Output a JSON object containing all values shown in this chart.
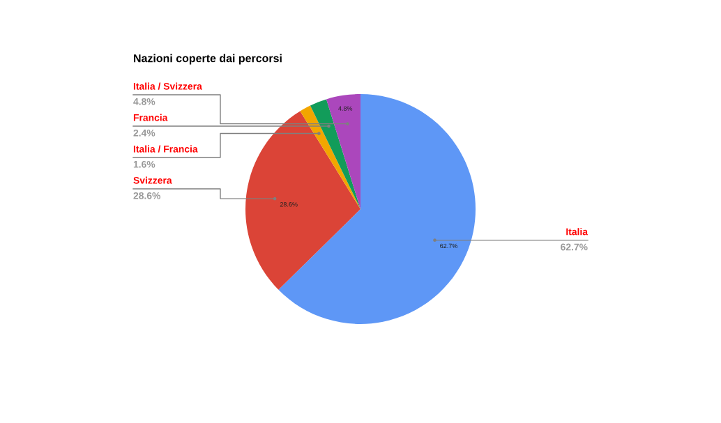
{
  "chart_data": {
    "type": "pie",
    "title": "Nazioni coperte dai percorsi",
    "categories": [
      "Italia",
      "Svizzera",
      "Italia / Francia",
      "Francia",
      "Italia / Svizzera"
    ],
    "values": [
      62.7,
      28.6,
      1.6,
      2.4,
      4.8
    ],
    "colors": [
      "#5e97f6",
      "#db4437",
      "#f2a600",
      "#129c5a",
      "#ab47bc"
    ],
    "value_labels": [
      "62.7%",
      "28.6%",
      "1.6%",
      "2.4%",
      "4.8%"
    ],
    "annotations": [
      {
        "text": "62.7%",
        "x": "Italia"
      },
      {
        "text": "28.6%",
        "x": "Svizzera"
      },
      {
        "text": "4.8%",
        "x": "Italia / Svizzera"
      }
    ]
  }
}
